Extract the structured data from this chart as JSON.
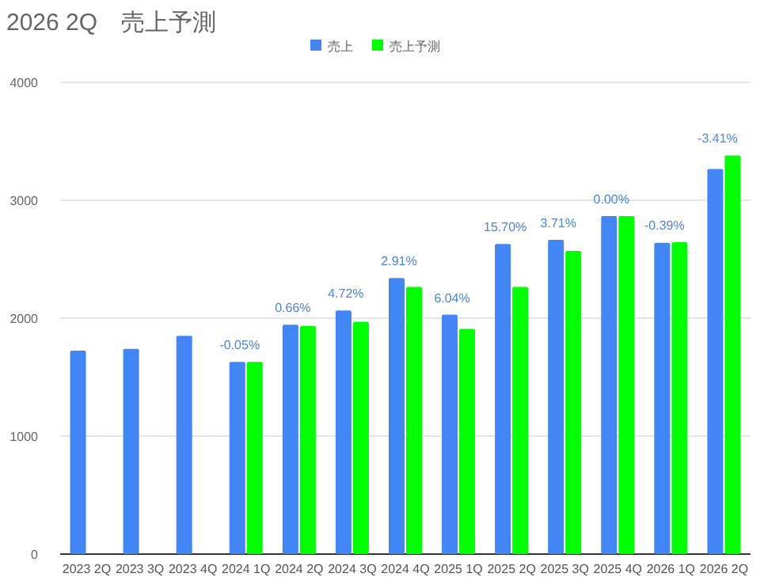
{
  "chart_data": {
    "type": "bar",
    "title": "2026 2Q　売上予測",
    "categories": [
      "2023 2Q",
      "2023 3Q",
      "2023 4Q",
      "2024 1Q",
      "2024 2Q",
      "2024 3Q",
      "2024 4Q",
      "2025 1Q",
      "2025 2Q",
      "2025 3Q",
      "2025 4Q",
      "2026 1Q",
      "2026 2Q"
    ],
    "series": [
      {
        "name": "売上",
        "color": "#4285f4",
        "values": [
          1725,
          1740,
          1850,
          1630,
          1945,
          2065,
          2340,
          2030,
          2630,
          2665,
          2865,
          2640,
          3265
        ]
      },
      {
        "name": "売上予測",
        "color": "#00ff00",
        "values": [
          null,
          null,
          null,
          1630,
          1935,
          1970,
          2265,
          1910,
          2265,
          2570,
          2865,
          2645,
          3380
        ]
      }
    ],
    "ylim": [
      0,
      4000
    ],
    "yticks": [
      0,
      1000,
      2000,
      3000,
      4000
    ],
    "grid": "y",
    "legend": "top",
    "annotations": [
      {
        "text": "-0.05%",
        "x": "2024 1Q",
        "y": 1630
      },
      {
        "text": "0.66%",
        "x": "2024 2Q",
        "y": 1945
      },
      {
        "text": "4.72%",
        "x": "2024 3Q",
        "y": 2065
      },
      {
        "text": "2.91%",
        "x": "2024 4Q",
        "y": 2340
      },
      {
        "text": "6.04%",
        "x": "2025 1Q",
        "y": 2030
      },
      {
        "text": "15.70%",
        "x": "2025 2Q",
        "y": 2630
      },
      {
        "text": "3.71%",
        "x": "2025 3Q",
        "y": 2665
      },
      {
        "text": "0.00%",
        "x": "2025 4Q",
        "y": 2865
      },
      {
        "text": "-0.39%",
        "x": "2026 1Q",
        "y": 2645
      },
      {
        "text": "-3.41%",
        "x": "2026 2Q",
        "y": 3380
      }
    ]
  }
}
